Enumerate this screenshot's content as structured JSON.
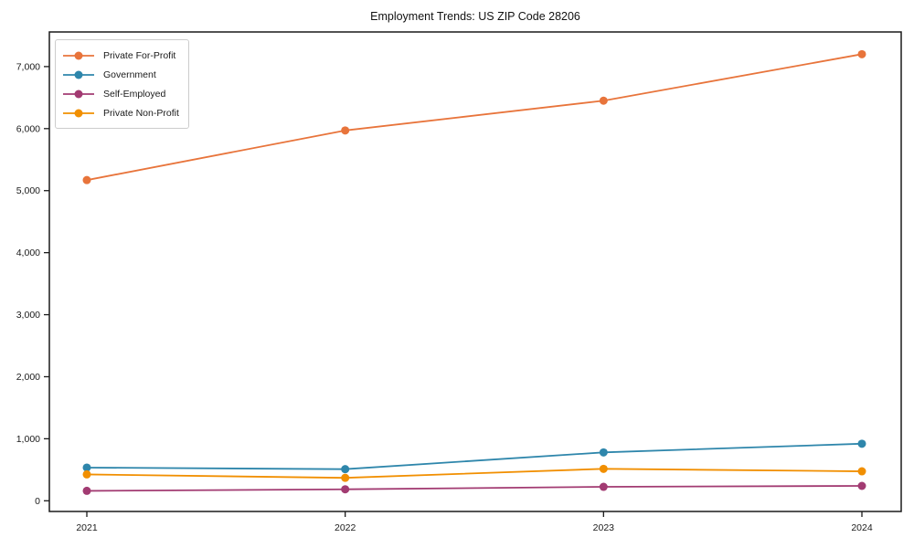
{
  "chart_data": {
    "type": "line",
    "title": "Employment Trends: US ZIP Code 28206",
    "categories": [
      "2021",
      "2022",
      "2023",
      "2024"
    ],
    "series": [
      {
        "name": "Private For-Profit",
        "color": "#E8743B",
        "values": [
          5170,
          5970,
          6450,
          7200
        ]
      },
      {
        "name": "Government",
        "color": "#2E86AB",
        "values": [
          535,
          510,
          780,
          920
        ]
      },
      {
        "name": "Self-Employed",
        "color": "#A23B72",
        "values": [
          160,
          185,
          225,
          240
        ]
      },
      {
        "name": "Private Non-Profit",
        "color": "#F18F01",
        "values": [
          425,
          370,
          515,
          475
        ]
      }
    ],
    "xlabel": "",
    "ylabel": "",
    "ylim": [
      0,
      7000
    ],
    "y_ticks": [
      0,
      1000,
      2000,
      3000,
      4000,
      5000,
      6000,
      7000
    ],
    "y_tick_labels": [
      "0",
      "1,000",
      "2,000",
      "3,000",
      "4,000",
      "5,000",
      "6,000",
      "7,000"
    ],
    "grid": false,
    "legend_position": "upper-left",
    "marker": "circle",
    "background_color": "#ffffff",
    "axis_color": "#1a1a1a"
  }
}
